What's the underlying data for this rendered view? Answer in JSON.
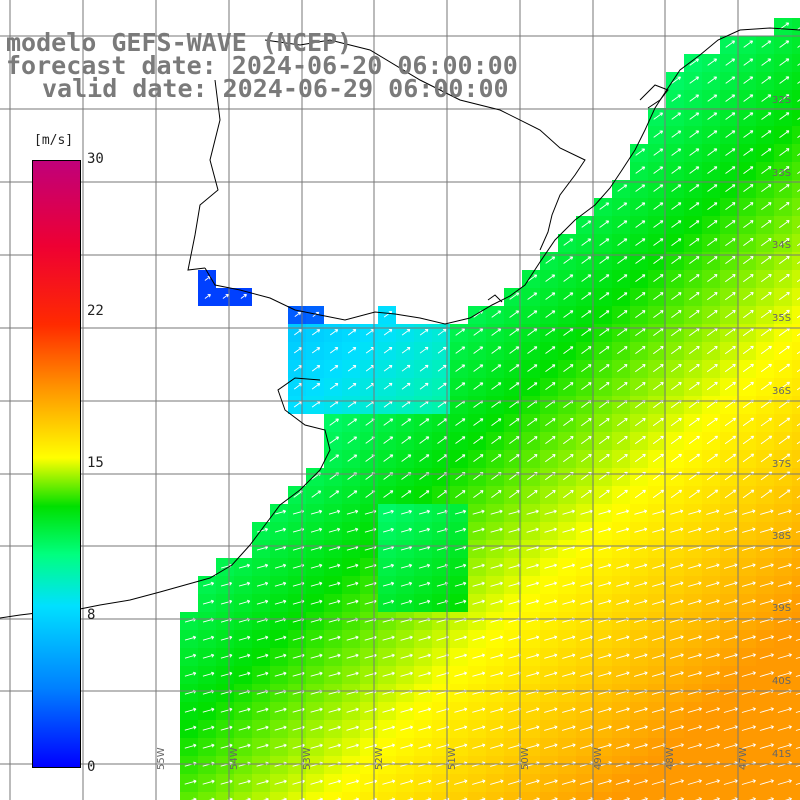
{
  "title": {
    "line1": "modelo GEFS-WAVE (NCEP)",
    "line2": "forecast date: 2024-06-20 06:00:00",
    "line3": "valid date: 2024-06-29 06:00:00"
  },
  "colorbar": {
    "unit": "[m/s]",
    "min": 0,
    "max": 30,
    "tick_labels": [
      "30",
      "22",
      "15",
      "8",
      "0"
    ],
    "tick_values": [
      30,
      22,
      15,
      8,
      0
    ],
    "colors": [
      "#0000ff",
      "#0080ff",
      "#00e0ff",
      "#00ff80",
      "#00e000",
      "#ffff00",
      "#ff9900",
      "#ff2a00",
      "#ee0033",
      "#c0007a"
    ]
  },
  "latitude_labels": [
    "32S",
    "33S",
    "34S",
    "35S",
    "36S",
    "37S",
    "38S",
    "39S",
    "40S",
    "41S"
  ],
  "longitude_labels": [
    "55W",
    "54W",
    "53W",
    "52W",
    "51W",
    "50W",
    "49W",
    "48W",
    "47W"
  ],
  "field": {
    "variable": "wind speed with direction arrows",
    "arrow_direction": "toward northeast",
    "land_color": "#ffffff",
    "coast_color": "#000000"
  }
}
